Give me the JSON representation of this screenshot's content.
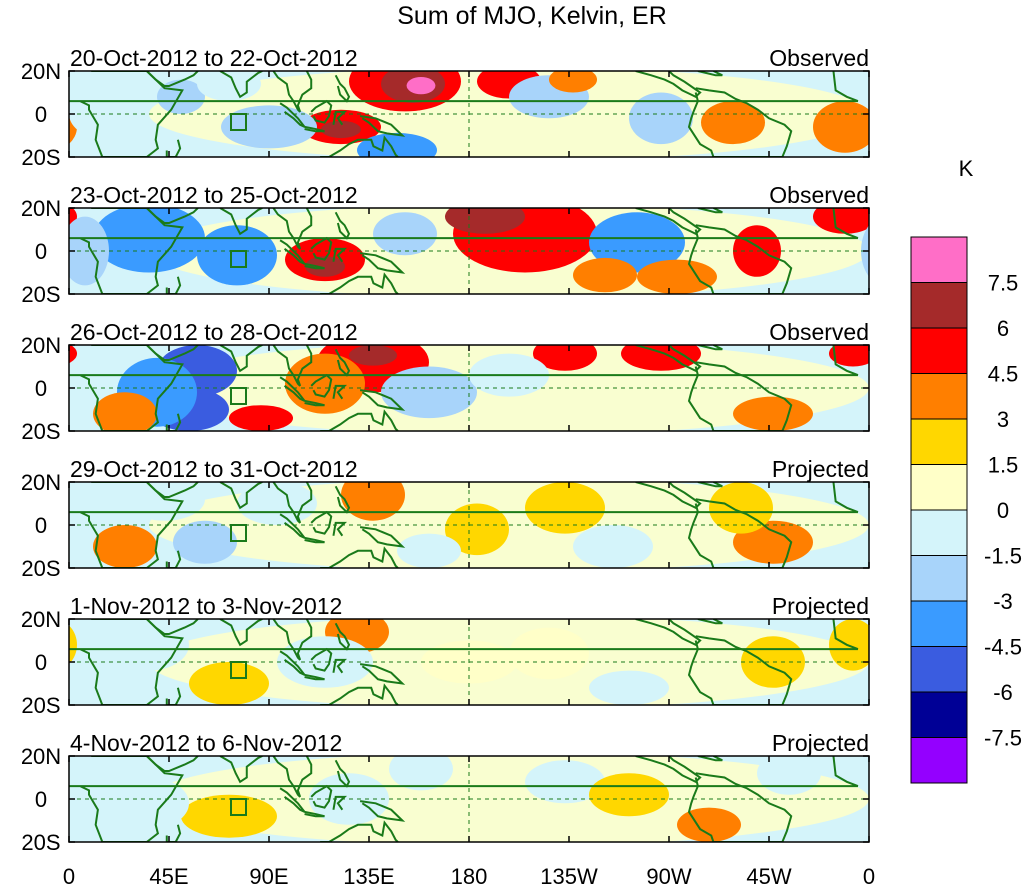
{
  "title": "Sum of MJO, Kelvin, ER",
  "lat_labels": [
    "20N",
    "0",
    "20S"
  ],
  "lon_labels": [
    "0",
    "45E",
    "90E",
    "135E",
    "180",
    "135W",
    "90W",
    "45W",
    "0"
  ],
  "panels": [
    {
      "date": "20-Oct-2012 to 22-Oct-2012",
      "status": "Observed"
    },
    {
      "date": "23-Oct-2012 to 25-Oct-2012",
      "status": "Observed"
    },
    {
      "date": "26-Oct-2012 to 28-Oct-2012",
      "status": "Observed"
    },
    {
      "date": "29-Oct-2012 to 31-Oct-2012",
      "status": "Projected"
    },
    {
      "date": "1-Nov-2012 to 3-Nov-2012",
      "status": "Projected"
    },
    {
      "date": "4-Nov-2012 to 6-Nov-2012",
      "status": "Projected"
    }
  ],
  "colorbar": {
    "unit": "K",
    "labels": [
      "7.5",
      "6",
      "4.5",
      "3",
      "1.5",
      "0",
      "-1.5",
      "-3",
      "-4.5",
      "-6",
      "-7.5"
    ],
    "colors": [
      "#ff6ec7",
      "#a52a2a",
      "#ff0000",
      "#ff7f00",
      "#ffd700",
      "#ffffc8",
      "#d4f4fa",
      "#a8d4fa",
      "#3a9bff",
      "#3a5ce0",
      "#000096",
      "#9400ff"
    ]
  }
}
